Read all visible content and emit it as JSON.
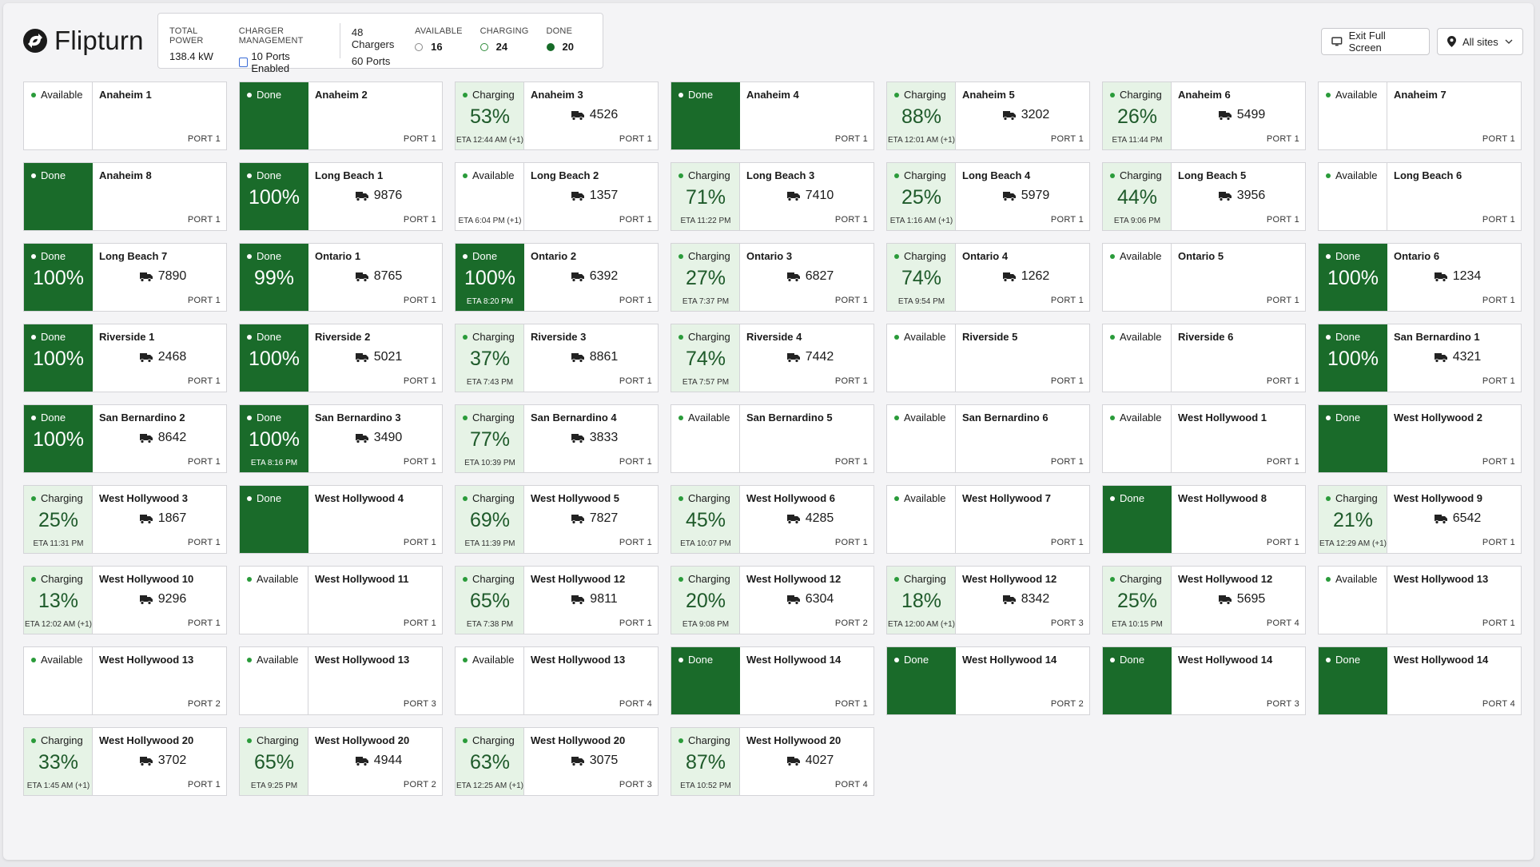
{
  "brand": {
    "name": "Flipturn",
    "logo_icon": "flipturn-logo-icon"
  },
  "stats": {
    "total_power_label": "TOTAL POWER",
    "total_power_value": "138.4 kW",
    "charger_mgmt_label": "CHARGER MANAGEMENT",
    "charger_mgmt_value": "10 Ports Enabled",
    "chargers_count": "48 Chargers",
    "ports_count": "60 Ports",
    "available_label": "AVAILABLE",
    "available_value": "16",
    "charging_label": "CHARGING",
    "charging_value": "24",
    "done_label": "DONE",
    "done_value": "20"
  },
  "header_buttons": {
    "exit_fullscreen": "Exit Full Screen",
    "sites": "All sites"
  },
  "colors": {
    "done": "#1a6b2a",
    "charging_bg": "#e6f3e6",
    "status_dot": "#2a9b3a"
  },
  "cards": [
    {
      "status": "Available",
      "name": "Anaheim 1",
      "pct": "",
      "eta": "",
      "truck": "",
      "port": "PORT 1"
    },
    {
      "status": "Done",
      "name": "Anaheim 2",
      "pct": "",
      "eta": "",
      "truck": "",
      "port": "PORT 1"
    },
    {
      "status": "Charging",
      "name": "Anaheim 3",
      "pct": "53%",
      "eta": "ETA 12:44 AM (+1)",
      "truck": "4526",
      "port": "PORT 1"
    },
    {
      "status": "Done",
      "name": "Anaheim 4",
      "pct": "",
      "eta": "",
      "truck": "",
      "port": "PORT 1"
    },
    {
      "status": "Charging",
      "name": "Anaheim 5",
      "pct": "88%",
      "eta": "ETA 12:01 AM (+1)",
      "truck": "3202",
      "port": "PORT 1"
    },
    {
      "status": "Charging",
      "name": "Anaheim 6",
      "pct": "26%",
      "eta": "ETA 11:44 PM",
      "truck": "5499",
      "port": "PORT 1"
    },
    {
      "status": "Available",
      "name": "Anaheim 7",
      "pct": "",
      "eta": "",
      "truck": "",
      "port": "PORT 1"
    },
    {
      "status": "Done",
      "name": "Anaheim 8",
      "pct": "",
      "eta": "",
      "truck": "",
      "port": "PORT 1"
    },
    {
      "status": "Done",
      "name": "Long Beach 1",
      "pct": "100%",
      "eta": "",
      "truck": "9876",
      "port": "PORT 1"
    },
    {
      "status": "Available",
      "name": "Long Beach 2",
      "pct": "",
      "eta": "ETA 6:04 PM (+1)",
      "truck": "1357",
      "port": "PORT 1"
    },
    {
      "status": "Charging",
      "name": "Long Beach 3",
      "pct": "71%",
      "eta": "ETA 11:22 PM",
      "truck": "7410",
      "port": "PORT 1"
    },
    {
      "status": "Charging",
      "name": "Long Beach 4",
      "pct": "25%",
      "eta": "ETA 1:16 AM (+1)",
      "truck": "5979",
      "port": "PORT 1"
    },
    {
      "status": "Charging",
      "name": "Long Beach 5",
      "pct": "44%",
      "eta": "ETA 9:06 PM",
      "truck": "3956",
      "port": "PORT 1"
    },
    {
      "status": "Available",
      "name": "Long Beach 6",
      "pct": "",
      "eta": "",
      "truck": "",
      "port": "PORT 1"
    },
    {
      "status": "Done",
      "name": "Long Beach 7",
      "pct": "100%",
      "eta": "",
      "truck": "7890",
      "port": "PORT 1"
    },
    {
      "status": "Done",
      "name": "Ontario 1",
      "pct": "99%",
      "eta": "",
      "truck": "8765",
      "port": "PORT 1"
    },
    {
      "status": "Done",
      "name": "Ontario 2",
      "pct": "100%",
      "eta": "ETA 8:20 PM",
      "truck": "6392",
      "port": "PORT 1"
    },
    {
      "status": "Charging",
      "name": "Ontario 3",
      "pct": "27%",
      "eta": "ETA 7:37 PM",
      "truck": "6827",
      "port": "PORT 1"
    },
    {
      "status": "Charging",
      "name": "Ontario 4",
      "pct": "74%",
      "eta": "ETA 9:54 PM",
      "truck": "1262",
      "port": "PORT 1"
    },
    {
      "status": "Available",
      "name": "Ontario 5",
      "pct": "",
      "eta": "",
      "truck": "",
      "port": "PORT 1"
    },
    {
      "status": "Done",
      "name": "Ontario 6",
      "pct": "100%",
      "eta": "",
      "truck": "1234",
      "port": "PORT 1"
    },
    {
      "status": "Done",
      "name": "Riverside 1",
      "pct": "100%",
      "eta": "",
      "truck": "2468",
      "port": "PORT 1"
    },
    {
      "status": "Done",
      "name": "Riverside 2",
      "pct": "100%",
      "eta": "",
      "truck": "5021",
      "port": "PORT 1"
    },
    {
      "status": "Charging",
      "name": "Riverside 3",
      "pct": "37%",
      "eta": "ETA 7:43 PM",
      "truck": "8861",
      "port": "PORT 1"
    },
    {
      "status": "Charging",
      "name": "Riverside 4",
      "pct": "74%",
      "eta": "ETA 7:57 PM",
      "truck": "7442",
      "port": "PORT 1"
    },
    {
      "status": "Available",
      "name": "Riverside 5",
      "pct": "",
      "eta": "",
      "truck": "",
      "port": "PORT 1"
    },
    {
      "status": "Available",
      "name": "Riverside 6",
      "pct": "",
      "eta": "",
      "truck": "",
      "port": "PORT 1"
    },
    {
      "status": "Done",
      "name": "San Bernardino 1",
      "pct": "100%",
      "eta": "",
      "truck": "4321",
      "port": "PORT 1"
    },
    {
      "status": "Done",
      "name": "San Bernardino 2",
      "pct": "100%",
      "eta": "",
      "truck": "8642",
      "port": "PORT 1"
    },
    {
      "status": "Done",
      "name": "San Bernardino 3",
      "pct": "100%",
      "eta": "ETA 8:16 PM",
      "truck": "3490",
      "port": "PORT 1"
    },
    {
      "status": "Charging",
      "name": "San Bernardino 4",
      "pct": "77%",
      "eta": "ETA 10:39 PM",
      "truck": "3833",
      "port": "PORT 1"
    },
    {
      "status": "Available",
      "name": "San Bernardino 5",
      "pct": "",
      "eta": "",
      "truck": "",
      "port": "PORT 1"
    },
    {
      "status": "Available",
      "name": "San Bernardino 6",
      "pct": "",
      "eta": "",
      "truck": "",
      "port": "PORT 1"
    },
    {
      "status": "Available",
      "name": "West Hollywood 1",
      "pct": "",
      "eta": "",
      "truck": "",
      "port": "PORT 1"
    },
    {
      "status": "Done",
      "name": "West Hollywood 2",
      "pct": "",
      "eta": "",
      "truck": "",
      "port": "PORT 1"
    },
    {
      "status": "Charging",
      "name": "West Hollywood 3",
      "pct": "25%",
      "eta": "ETA 11:31 PM",
      "truck": "1867",
      "port": "PORT 1"
    },
    {
      "status": "Done",
      "name": "West Hollywood 4",
      "pct": "",
      "eta": "",
      "truck": "",
      "port": "PORT 1"
    },
    {
      "status": "Charging",
      "name": "West Hollywood 5",
      "pct": "69%",
      "eta": "ETA 11:39 PM",
      "truck": "7827",
      "port": "PORT 1"
    },
    {
      "status": "Charging",
      "name": "West Hollywood 6",
      "pct": "45%",
      "eta": "ETA 10:07 PM",
      "truck": "4285",
      "port": "PORT 1"
    },
    {
      "status": "Available",
      "name": "West Hollywood 7",
      "pct": "",
      "eta": "",
      "truck": "",
      "port": "PORT 1"
    },
    {
      "status": "Done",
      "name": "West Hollywood 8",
      "pct": "",
      "eta": "",
      "truck": "",
      "port": "PORT 1"
    },
    {
      "status": "Charging",
      "name": "West Hollywood 9",
      "pct": "21%",
      "eta": "ETA 12:29 AM (+1)",
      "truck": "6542",
      "port": "PORT 1"
    },
    {
      "status": "Charging",
      "name": "West Hollywood 10",
      "pct": "13%",
      "eta": "ETA 12:02 AM (+1)",
      "truck": "9296",
      "port": "PORT 1"
    },
    {
      "status": "Available",
      "name": "West Hollywood 11",
      "pct": "",
      "eta": "",
      "truck": "",
      "port": "PORT 1"
    },
    {
      "status": "Charging",
      "name": "West Hollywood 12",
      "pct": "65%",
      "eta": "ETA 7:38 PM",
      "truck": "9811",
      "port": "PORT 1"
    },
    {
      "status": "Charging",
      "name": "West Hollywood 12",
      "pct": "20%",
      "eta": "ETA 9:08 PM",
      "truck": "6304",
      "port": "PORT 2"
    },
    {
      "status": "Charging",
      "name": "West Hollywood 12",
      "pct": "18%",
      "eta": "ETA 12:00 AM (+1)",
      "truck": "8342",
      "port": "PORT 3"
    },
    {
      "status": "Charging",
      "name": "West Hollywood 12",
      "pct": "25%",
      "eta": "ETA 10:15 PM",
      "truck": "5695",
      "port": "PORT 4"
    },
    {
      "status": "Available",
      "name": "West Hollywood 13",
      "pct": "",
      "eta": "",
      "truck": "",
      "port": "PORT 1"
    },
    {
      "status": "Available",
      "name": "West Hollywood 13",
      "pct": "",
      "eta": "",
      "truck": "",
      "port": "PORT 2"
    },
    {
      "status": "Available",
      "name": "West Hollywood 13",
      "pct": "",
      "eta": "",
      "truck": "",
      "port": "PORT 3"
    },
    {
      "status": "Available",
      "name": "West Hollywood 13",
      "pct": "",
      "eta": "",
      "truck": "",
      "port": "PORT 4"
    },
    {
      "status": "Done",
      "name": "West Hollywood 14",
      "pct": "",
      "eta": "",
      "truck": "",
      "port": "PORT 1"
    },
    {
      "status": "Done",
      "name": "West Hollywood 14",
      "pct": "",
      "eta": "",
      "truck": "",
      "port": "PORT 2"
    },
    {
      "status": "Done",
      "name": "West Hollywood 14",
      "pct": "",
      "eta": "",
      "truck": "",
      "port": "PORT 3"
    },
    {
      "status": "Done",
      "name": "West Hollywood 14",
      "pct": "",
      "eta": "",
      "truck": "",
      "port": "PORT 4"
    },
    {
      "status": "Charging",
      "name": "West Hollywood 20",
      "pct": "33%",
      "eta": "ETA 1:45 AM (+1)",
      "truck": "3702",
      "port": "PORT 1"
    },
    {
      "status": "Charging",
      "name": "West Hollywood 20",
      "pct": "65%",
      "eta": "ETA 9:25 PM",
      "truck": "4944",
      "port": "PORT 2"
    },
    {
      "status": "Charging",
      "name": "West Hollywood 20",
      "pct": "63%",
      "eta": "ETA 12:25 AM (+1)",
      "truck": "3075",
      "port": "PORT 3"
    },
    {
      "status": "Charging",
      "name": "West Hollywood 20",
      "pct": "87%",
      "eta": "ETA 10:52 PM",
      "truck": "4027",
      "port": "PORT 4"
    }
  ]
}
